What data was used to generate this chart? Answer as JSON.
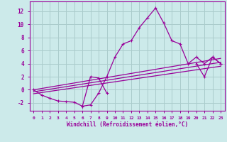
{
  "bg_color": "#cceaea",
  "grid_color": "#aacccc",
  "line_color": "#990099",
  "xlabel": "Windchill (Refroidissement éolien,°C)",
  "ylim": [
    -3.2,
    13.5
  ],
  "xlim": [
    -0.5,
    23.5
  ],
  "yticks": [
    -2,
    0,
    2,
    4,
    6,
    8,
    10,
    12
  ],
  "xticks": [
    0,
    1,
    2,
    3,
    4,
    5,
    6,
    7,
    8,
    9,
    10,
    11,
    12,
    13,
    14,
    15,
    16,
    17,
    18,
    19,
    20,
    21,
    22,
    23
  ],
  "spiky_x": [
    0,
    1,
    2,
    3,
    4,
    5,
    6,
    7,
    8,
    9,
    10,
    11,
    12,
    13,
    14,
    15,
    16,
    17,
    18,
    19,
    20,
    21,
    22,
    23
  ],
  "spiky_y": [
    0.0,
    -0.8,
    -1.3,
    -1.7,
    -1.8,
    -1.9,
    -2.5,
    -2.3,
    -0.5,
    2.0,
    5.0,
    7.0,
    7.5,
    9.5,
    11.0,
    12.5,
    10.2,
    7.5,
    7.0,
    4.0,
    5.0,
    4.0,
    5.0,
    4.0
  ],
  "line2_x": [
    0,
    23
  ],
  "line2_y": [
    0.0,
    4.8
  ],
  "line3_x": [
    0,
    23
  ],
  "line3_y": [
    -0.3,
    4.2
  ],
  "line4_x": [
    0,
    23
  ],
  "line4_y": [
    -0.6,
    3.6
  ],
  "spiky2_x": [
    6,
    7,
    8,
    9,
    20,
    21,
    22,
    23
  ],
  "spiky2_y": [
    -2.5,
    2.0,
    1.8,
    -0.5,
    4.0,
    2.0,
    5.0,
    4.0
  ]
}
